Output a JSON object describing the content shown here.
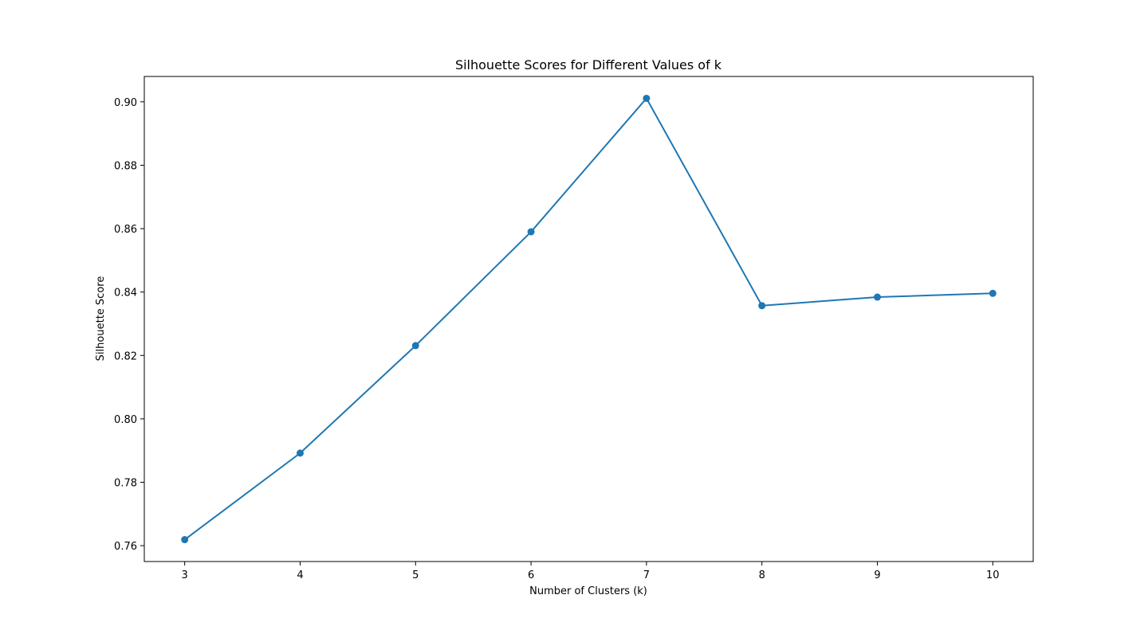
{
  "chart_data": {
    "type": "line",
    "title": "Silhouette Scores for Different Values of k",
    "xlabel": "Number of Clusters (k)",
    "ylabel": "Silhouette Score",
    "x": [
      3,
      4,
      5,
      6,
      7,
      8,
      9,
      10
    ],
    "series": [
      {
        "values": [
          0.7619,
          0.7892,
          0.8231,
          0.859,
          0.9011,
          0.8357,
          0.8384,
          0.8396
        ],
        "color": "#1f77b4",
        "marker": "circle"
      }
    ],
    "xlim": [
      2.65,
      10.35
    ],
    "ylim": [
      0.755,
      0.908
    ],
    "xticks": [
      3,
      4,
      5,
      6,
      7,
      8,
      9,
      10
    ],
    "yticks": [
      0.76,
      0.78,
      0.8,
      0.82,
      0.84,
      0.86,
      0.88,
      0.9
    ],
    "ytick_labels": [
      "0.76",
      "0.78",
      "0.80",
      "0.82",
      "0.84",
      "0.86",
      "0.88",
      "0.90"
    ],
    "grid": false,
    "legend": false
  }
}
